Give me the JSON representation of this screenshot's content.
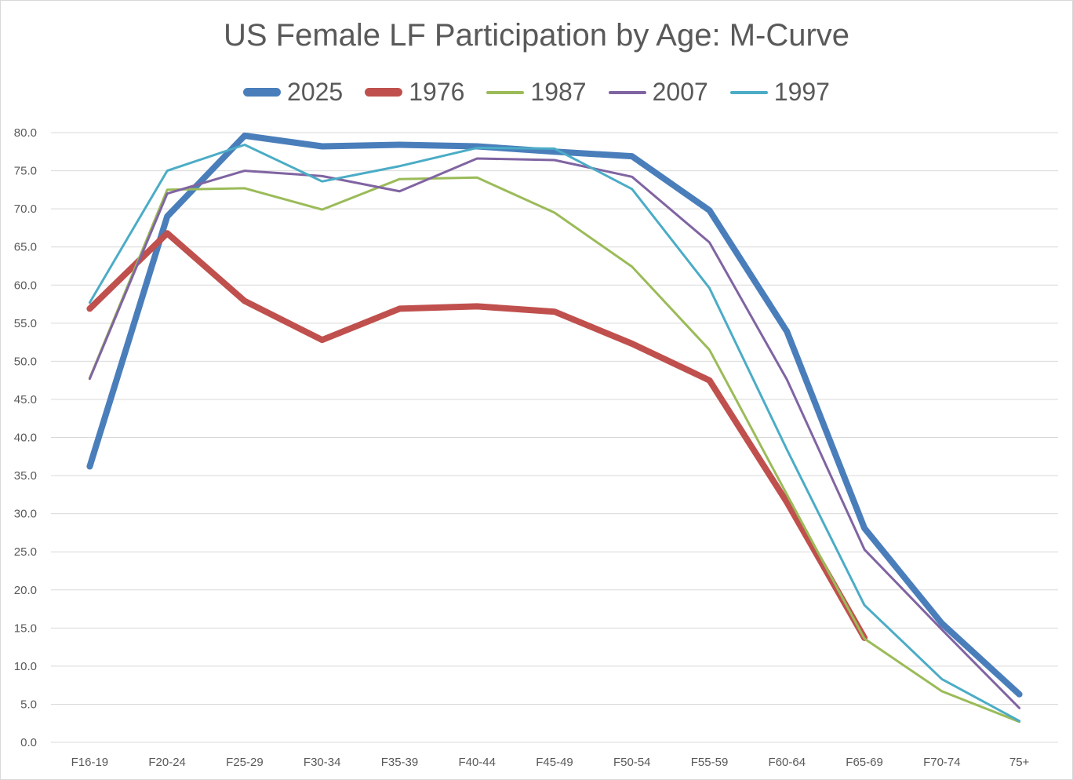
{
  "chart_data": {
    "type": "line",
    "title": "US Female LF Participation by Age: M-Curve",
    "xlabel": "",
    "ylabel": "",
    "categories": [
      "F16-19",
      "F20-24",
      "F25-29",
      "F30-34",
      "F35-39",
      "F40-44",
      "F45-49",
      "F50-54",
      "F55-59",
      "F60-64",
      "F65-69",
      "F70-74",
      "75+"
    ],
    "ylim": [
      0,
      80
    ],
    "yticks": [
      "0.0",
      "5.0",
      "10.0",
      "15.0",
      "20.0",
      "25.0",
      "30.0",
      "35.0",
      "40.0",
      "45.0",
      "50.0",
      "55.0",
      "60.0",
      "65.0",
      "70.0",
      "75.0",
      "80.0"
    ],
    "grid": true,
    "legend_position": "top",
    "series": [
      {
        "name": "2025",
        "color": "#4a7ebb",
        "width": 8,
        "values": [
          36.2,
          69.0,
          79.6,
          78.2,
          78.4,
          78.2,
          77.5,
          76.9,
          69.8,
          53.9,
          28.1,
          15.6,
          6.3
        ]
      },
      {
        "name": "1976",
        "color": "#c0504d",
        "width": 8,
        "values": [
          56.9,
          66.8,
          57.9,
          52.8,
          56.9,
          57.2,
          56.5,
          52.3,
          47.5,
          31.5,
          13.7,
          null,
          null
        ]
      },
      {
        "name": "1987",
        "color": "#9bbb59",
        "width": 3,
        "values": [
          47.8,
          72.5,
          72.7,
          69.9,
          73.9,
          74.1,
          69.5,
          62.4,
          51.5,
          32.5,
          13.6,
          6.7,
          2.7
        ]
      },
      {
        "name": "2007",
        "color": "#8064a2",
        "width": 3,
        "values": [
          47.7,
          72.0,
          75.0,
          74.3,
          72.3,
          76.6,
          76.4,
          74.2,
          65.6,
          47.6,
          25.3,
          14.8,
          4.5
        ]
      },
      {
        "name": "1997",
        "color": "#4bacc6",
        "width": 3,
        "values": [
          57.7,
          75.0,
          78.4,
          73.6,
          75.6,
          78.0,
          77.9,
          72.6,
          59.6,
          38.4,
          18.0,
          8.3,
          2.8
        ]
      }
    ]
  }
}
